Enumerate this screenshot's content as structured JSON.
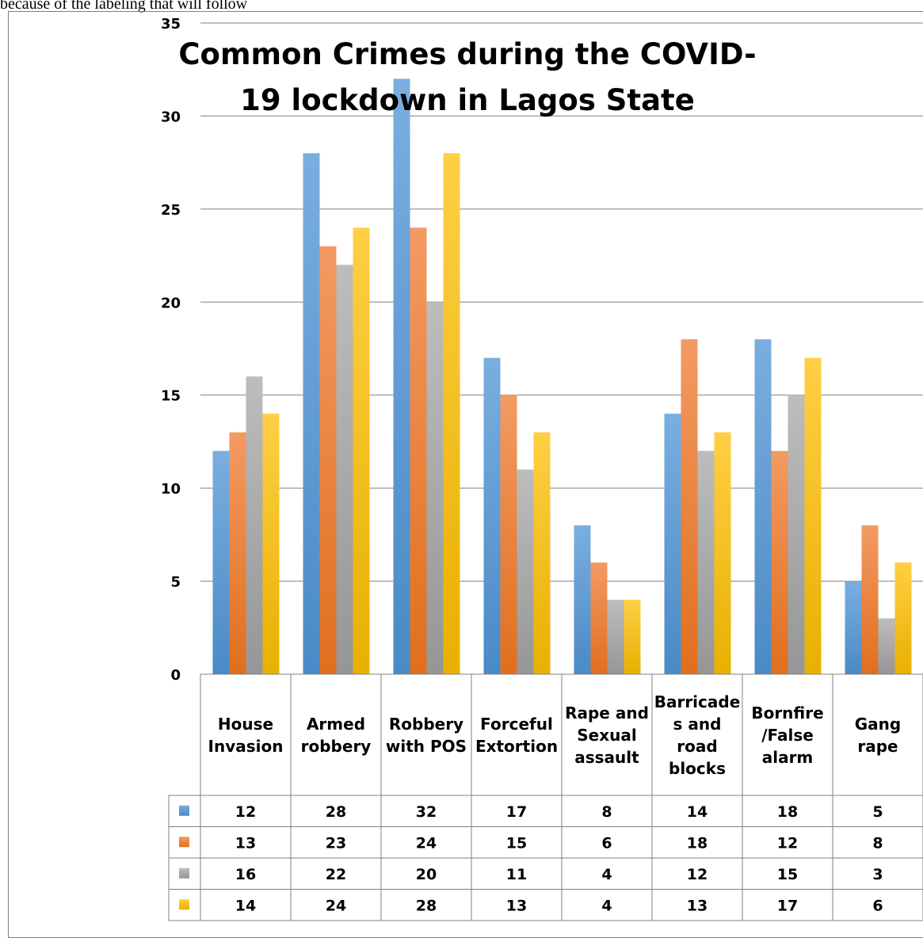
{
  "caption": "because of the labeling that will follow",
  "chart_data": {
    "type": "bar",
    "title": "Common Crimes during the COVID-19 lockdown in Lagos State",
    "xlabel": "",
    "ylabel": "",
    "ylim": [
      0,
      35
    ],
    "yticks": [
      0,
      5,
      10,
      15,
      20,
      25,
      30,
      35
    ],
    "grid": true,
    "legend": "data-table",
    "categories": [
      "House Invasion",
      "Armed robbery",
      "Robbery with POS",
      "Forceful Extortion",
      "Rape and Sexual assault",
      "Barricades and road blocks",
      "Bornfire /False alarm",
      "Gang rape"
    ],
    "category_lines": [
      [
        "House",
        "Invasion"
      ],
      [
        "Armed",
        "robbery"
      ],
      [
        "Robbery",
        "with POS"
      ],
      [
        "Forceful",
        "Extortion"
      ],
      [
        "Rape and",
        "Sexual",
        "assault"
      ],
      [
        "Barricade",
        "s and",
        "road",
        "blocks"
      ],
      [
        "Bornfire",
        "/False",
        "alarm"
      ],
      [
        "Gang",
        "rape"
      ]
    ],
    "series": [
      {
        "color": "#5b9bd5",
        "values": [
          12,
          28,
          32,
          17,
          8,
          14,
          18,
          5
        ]
      },
      {
        "color": "#ed7d31",
        "values": [
          13,
          23,
          24,
          15,
          6,
          18,
          12,
          8
        ]
      },
      {
        "color": "#a5a5a5",
        "values": [
          16,
          22,
          20,
          11,
          4,
          12,
          15,
          3
        ]
      },
      {
        "color": "#ffc000",
        "values": [
          14,
          24,
          28,
          13,
          4,
          13,
          17,
          6
        ]
      }
    ]
  }
}
